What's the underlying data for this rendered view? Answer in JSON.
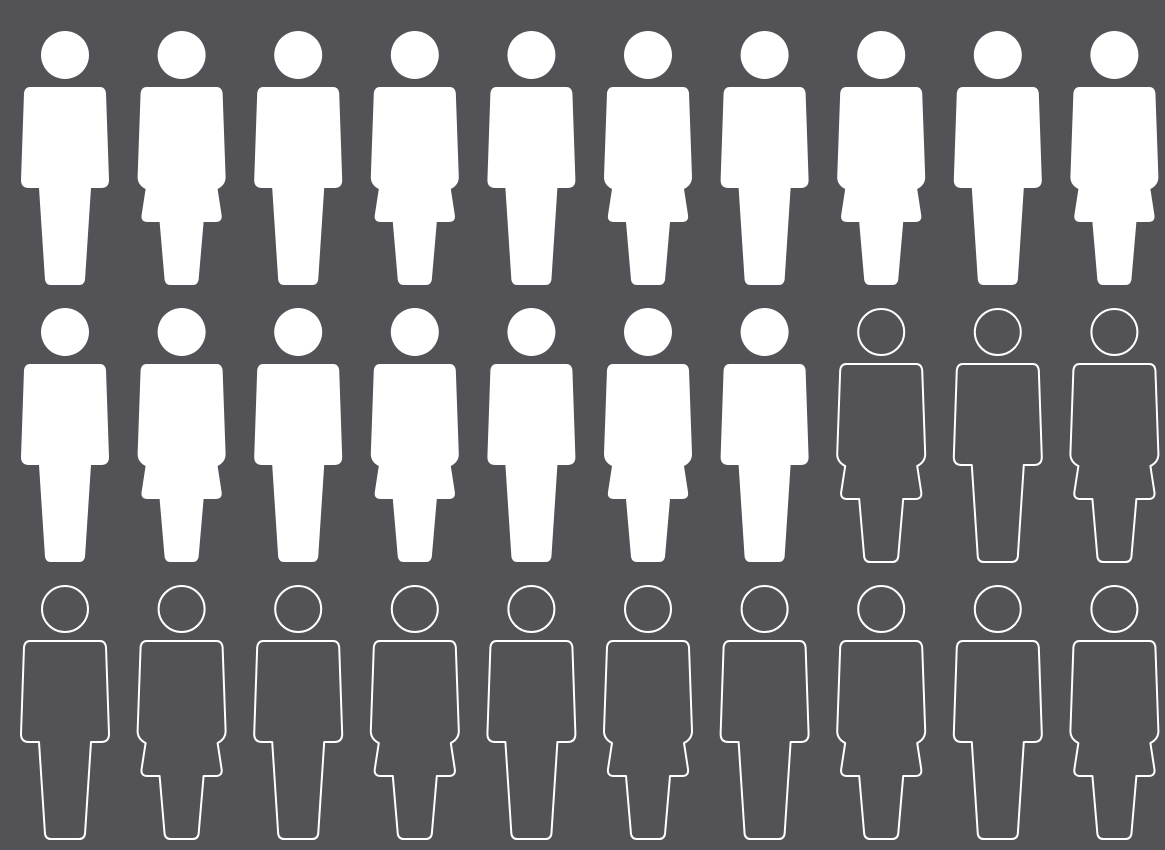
{
  "chart_data": {
    "type": "pictogram",
    "values": [
      17,
      13
    ],
    "color": "#ffffff",
    "columns": 10
  }
}
